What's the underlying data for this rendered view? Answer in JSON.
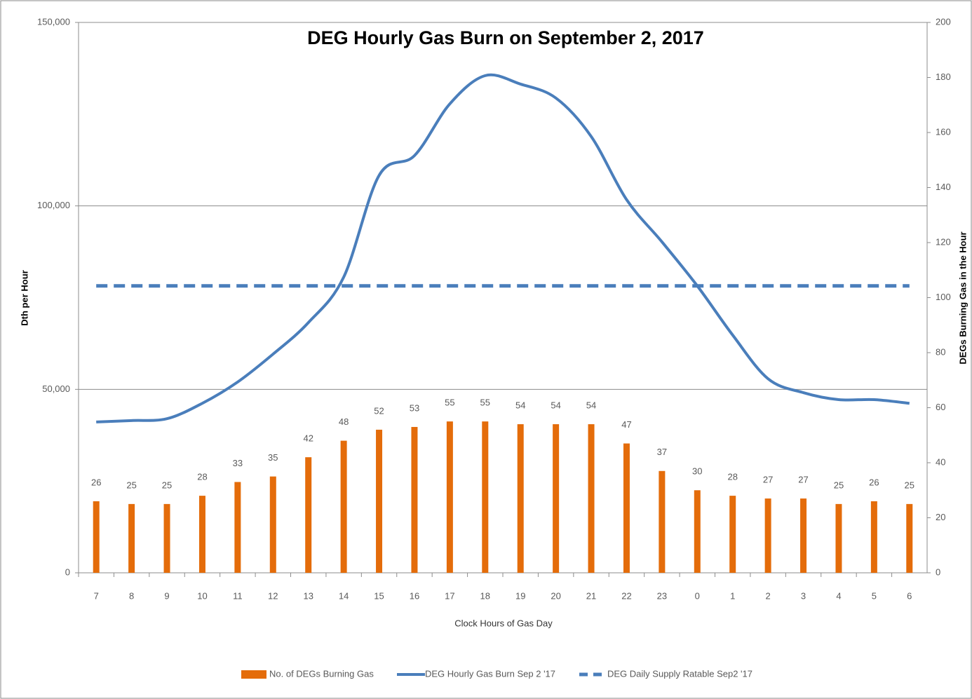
{
  "chart_data": {
    "type": "bar_line",
    "title": "DEG Hourly Gas Burn on September 2, 2017",
    "x_label": "Clock Hours of Gas Day",
    "y_label": "Dth per Hour",
    "y2_label": "DEGs Burning Gas in the Hour",
    "categories": [
      "7",
      "8",
      "9",
      "10",
      "11",
      "12",
      "13",
      "14",
      "15",
      "16",
      "17",
      "18",
      "19",
      "20",
      "21",
      "22",
      "23",
      "0",
      "1",
      "2",
      "3",
      "4",
      "5",
      "6"
    ],
    "series": [
      {
        "name": "No. of DEGs Burning Gas",
        "type": "bar",
        "axis": "y2",
        "color": "#e46c0a",
        "values": [
          26,
          25,
          25,
          28,
          33,
          35,
          42,
          48,
          52,
          53,
          55,
          55,
          54,
          54,
          54,
          47,
          37,
          30,
          28,
          27,
          27,
          25,
          26,
          25
        ]
      },
      {
        "name": "DEG Hourly Gas Burn Sep 2 '17",
        "type": "line",
        "color": "#4a7ebb",
        "values": [
          41100,
          41500,
          42000,
          46200,
          52000,
          59600,
          68200,
          80600,
          108300,
          113700,
          127800,
          135500,
          133200,
          129400,
          118900,
          101700,
          90200,
          78200,
          64800,
          52900,
          49100,
          47200,
          47200,
          46200
        ]
      },
      {
        "name": "DEG Daily Supply Ratable Sep2 '17",
        "type": "dashed-line",
        "color": "#4a7ebb",
        "values": [
          78200,
          78200,
          78200,
          78200,
          78200,
          78200,
          78200,
          78200,
          78200,
          78200,
          78200,
          78200,
          78200,
          78200,
          78200,
          78200,
          78200,
          78200,
          78200,
          78200,
          78200,
          78200,
          78200,
          78200
        ]
      }
    ],
    "ylim": [
      0,
      150000
    ],
    "yticks": [
      0,
      {
        "value": 50000,
        "label": "50,000"
      },
      {
        "value": 100000,
        "label": "100,000"
      },
      {
        "value": 150000,
        "label": "150,000"
      }
    ],
    "y2lim": [
      0,
      200
    ],
    "y2ticks": [
      0,
      20,
      40,
      60,
      80,
      100,
      120,
      140,
      160,
      180,
      200
    ],
    "grid": true
  }
}
